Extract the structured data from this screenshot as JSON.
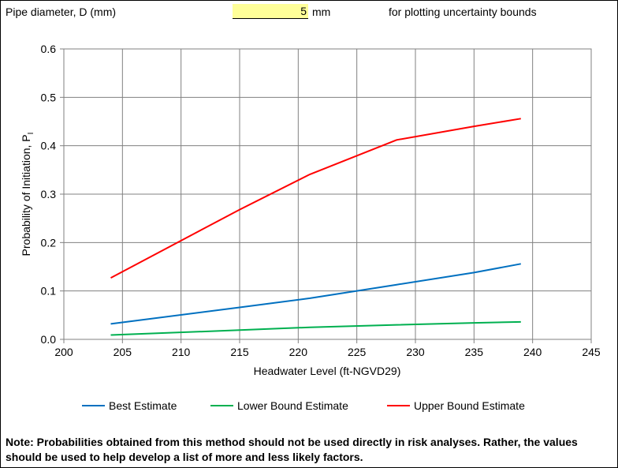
{
  "header": {
    "diameter_label": "Pipe diameter, D (mm)",
    "diameter_value": "5",
    "diameter_unit": "mm",
    "bounds_note": "for plotting uncertainty bounds"
  },
  "chart_data": {
    "type": "line",
    "title": "",
    "xlabel": "Headwater  Level  (ft-NGVD29)",
    "ylabel": "Probability of Initiation, P",
    "ylabel_subscript": "I",
    "xlim": [
      200,
      245
    ],
    "ylim": [
      0,
      0.6
    ],
    "xticks": [
      "200",
      "205",
      "210",
      "215",
      "220",
      "225",
      "230",
      "235",
      "240",
      "245"
    ],
    "yticks": [
      "0.0",
      "0.1",
      "0.2",
      "0.3",
      "0.4",
      "0.5",
      "0.6"
    ],
    "grid": true,
    "legend_position": "bottom",
    "series": [
      {
        "name": "Best Estimate",
        "color": "#0070c0",
        "x": [
          204,
          215,
          221,
          228.4,
          235,
          239
        ],
        "y": [
          0.032,
          0.066,
          0.085,
          0.113,
          0.138,
          0.156
        ]
      },
      {
        "name": "Lower Bound Estimate",
        "color": "#00b050",
        "x": [
          204,
          215,
          221,
          228.4,
          235,
          239
        ],
        "y": [
          0.009,
          0.019,
          0.025,
          0.03,
          0.034,
          0.036
        ]
      },
      {
        "name": "Upper Bound Estimate",
        "color": "#ff0000",
        "x": [
          204,
          215,
          221,
          228.4,
          235,
          239
        ],
        "y": [
          0.127,
          0.268,
          0.341,
          0.412,
          0.44,
          0.456
        ]
      }
    ]
  },
  "note": "Note: Probabilities obtained from this method should not be used directly in risk analyses. Rather, the values should be used to help develop a list of more and less likely factors."
}
